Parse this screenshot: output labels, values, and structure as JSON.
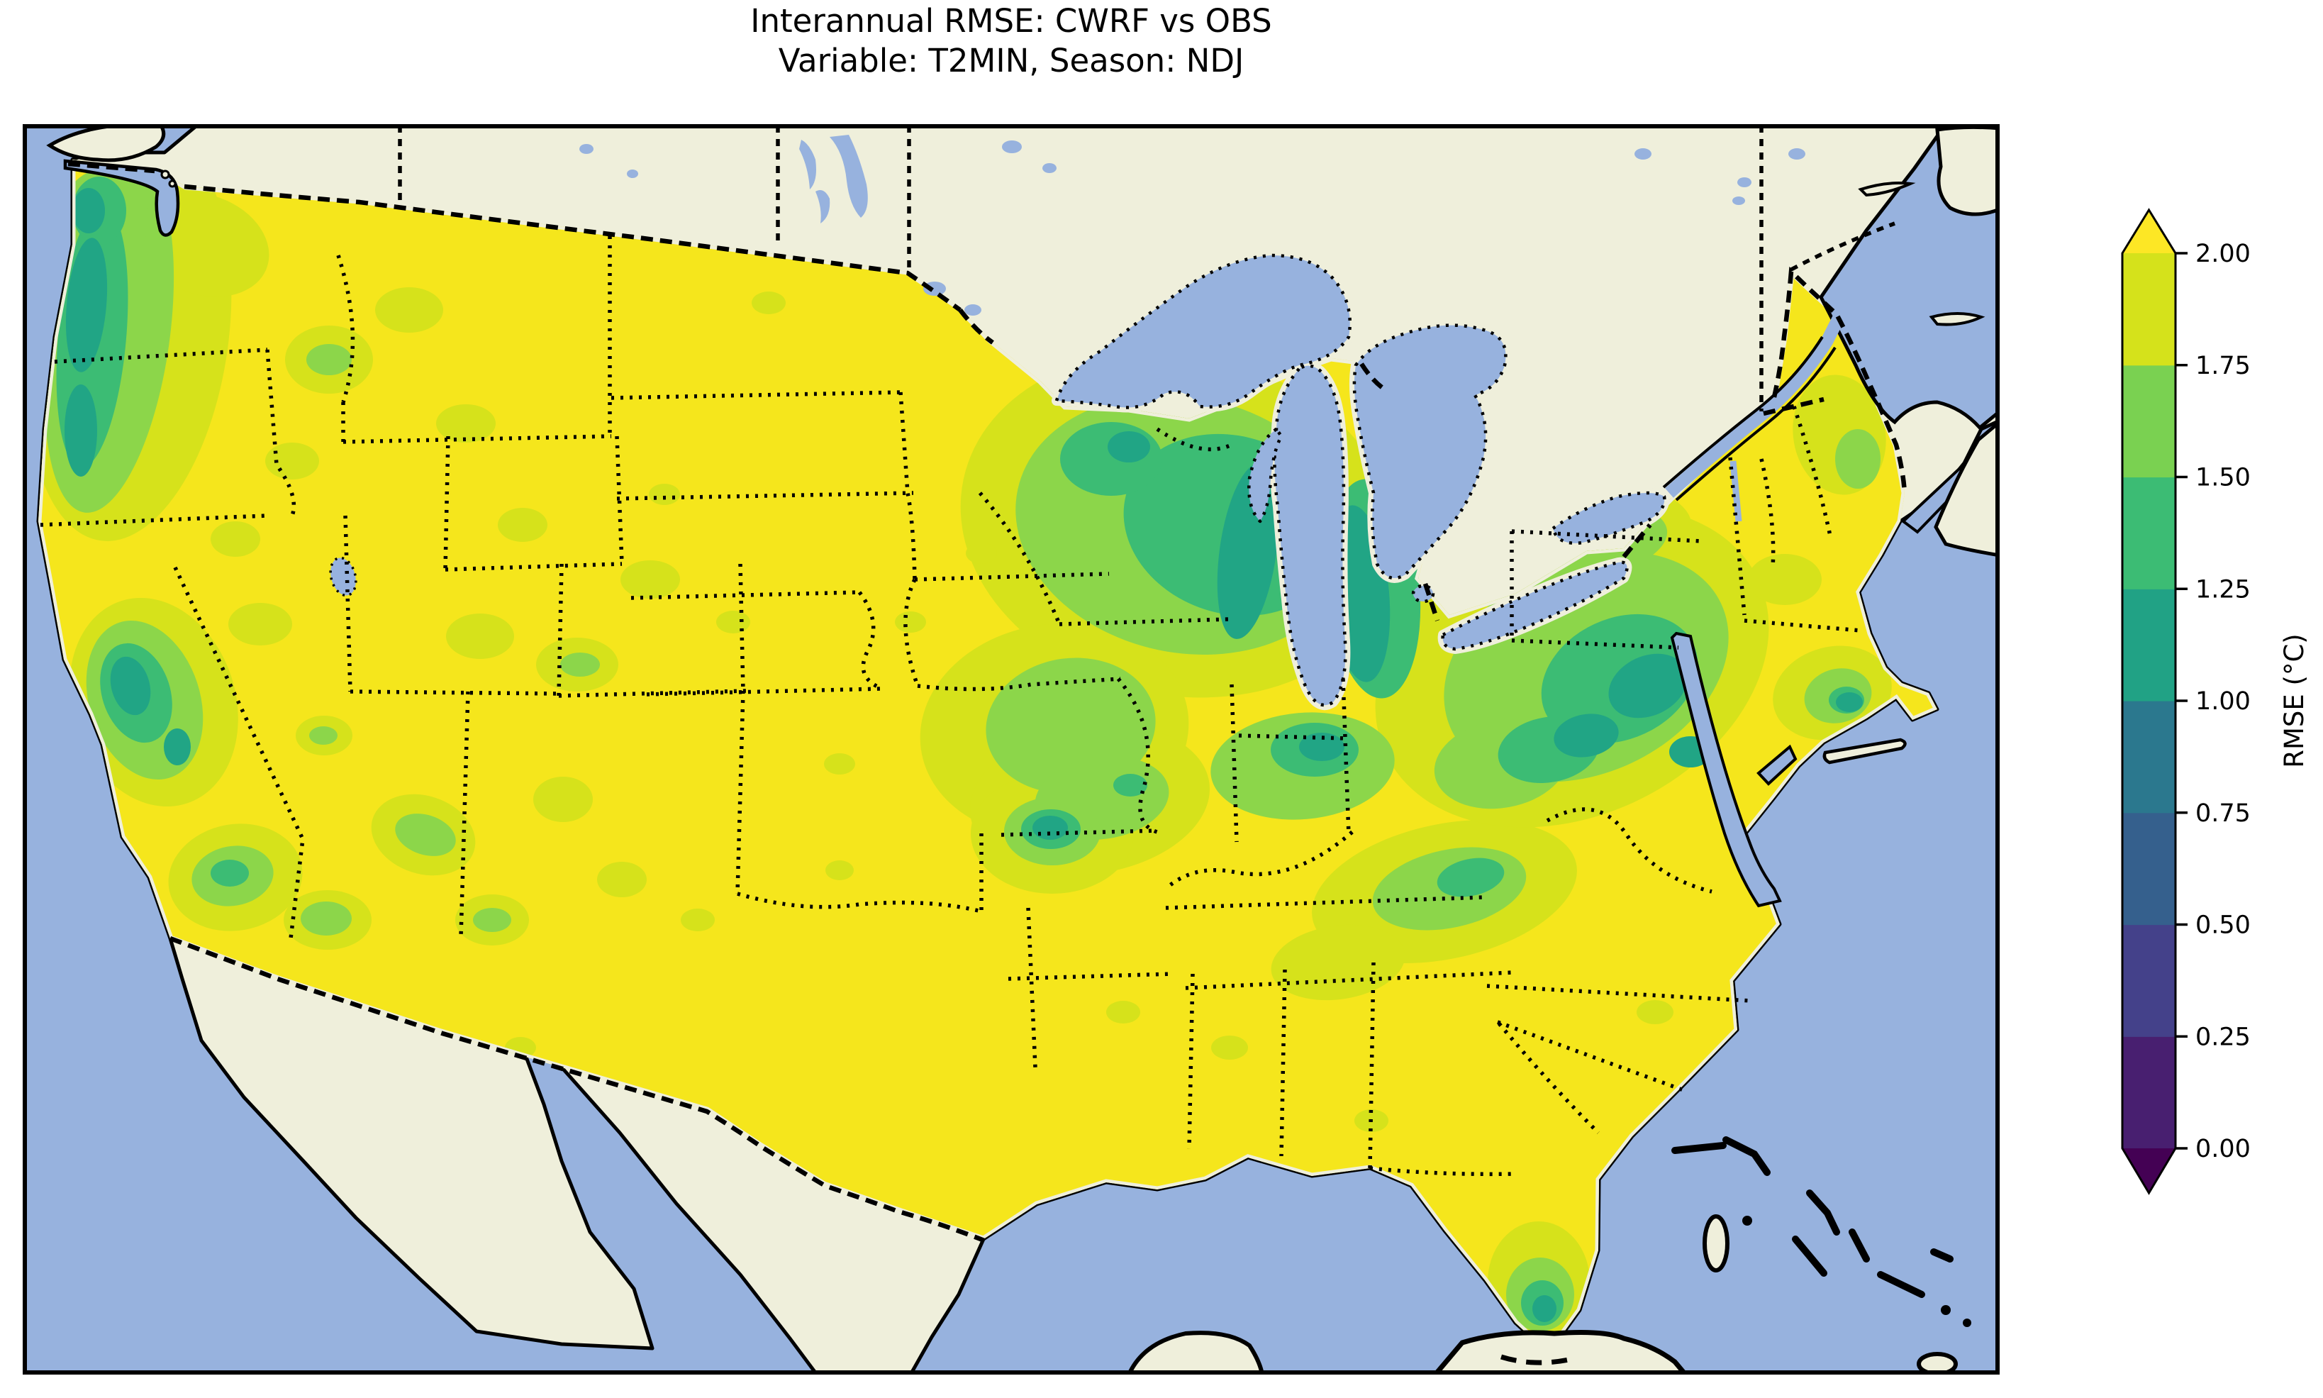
{
  "figure": {
    "title_line1": "Interannual RMSE: CWRF vs OBS",
    "title_line2": "Variable: T2MIN, Season: NDJ"
  },
  "colorbar": {
    "label": "RMSE (°C)",
    "ticks": [
      "2.00",
      "1.75",
      "1.50",
      "1.25",
      "1.00",
      "0.75",
      "0.50",
      "0.25",
      "0.00"
    ],
    "bins": [
      {
        "range": "0.00–0.25",
        "color": "#481F70"
      },
      {
        "range": "0.25–0.50",
        "color": "#44418A"
      },
      {
        "range": "0.50–0.75",
        "color": "#35608D"
      },
      {
        "range": "0.75–1.00",
        "color": "#2B788E"
      },
      {
        "range": "1.00–1.25",
        "color": "#21A285"
      },
      {
        "range": "1.25–1.50",
        "color": "#3CBC74"
      },
      {
        "range": "1.50–1.75",
        "color": "#7AD151"
      },
      {
        "range": "1.75–2.00",
        "color": "#D5E21B"
      }
    ],
    "over_color": "#FDE725",
    "under_color": "#440154",
    "orientation": "vertical-right",
    "extend": "both"
  },
  "map": {
    "colors": {
      "ocean": "#97B2DE",
      "land": "#EFEFDB",
      "lake": "#97B2DE",
      "coastline": "#000000",
      "rmse_dominant": "#F5E61C",
      "rmse_high_band": "#D6E21B",
      "rmse_mid_green": "#8CD64A",
      "rmse_low_green": "#3CBC74",
      "rmse_lowest_teal": "#21A585"
    },
    "region_shown": "CONUS with southern Canada, northern Mexico, Gulf of Mexico, Bahamas and Cuba",
    "border_styles": {
      "coastline": "solid",
      "national": "dashed",
      "state": "dotted",
      "lakes": "dotted"
    }
  },
  "chart_data": {
    "type": "heatmap",
    "title": "Interannual RMSE: CWRF vs OBS",
    "subtitle": "Variable: T2MIN, Season: NDJ",
    "variable": "T2MIN",
    "season": "NDJ",
    "metric": "RMSE",
    "units": "°C",
    "colorbar_range": [
      0,
      2
    ],
    "colorbar_tick_step": 0.25,
    "colormap": "viridis (discrete, 8 bins, extended both ends)",
    "spatial_pattern": [
      {
        "region": "Great Plains, Texas, interior West, Gulf Coast and Southeast (most of CONUS)",
        "rmse_c": 2.0,
        "note": "at or above colorbar maximum"
      },
      {
        "region": "Pacific Northwest coast (western Washington / Oregon)",
        "rmse_c": 1.0
      },
      {
        "region": "Northern California coast and Sierra Nevada",
        "rmse_c": 1.25
      },
      {
        "region": "Upper Midwest and Great Lakes shores (WI / MI, around Lake Michigan)",
        "rmse_c": 1.1
      },
      {
        "region": "Ozark Plateau (AR / MO)",
        "rmse_c": 1.1
      },
      {
        "region": "Appalachians and Mid-Atlantic (OH / PA / WV / MD / NY)",
        "rmse_c": 1.2
      },
      {
        "region": "Southern New England coast (near Boston)",
        "rmse_c": 1.25
      },
      {
        "region": "South Florida tip",
        "rmse_c": 1.1
      },
      {
        "region": "Mountain patches in AZ / NM / southern California",
        "rmse_c": 1.5
      }
    ]
  }
}
